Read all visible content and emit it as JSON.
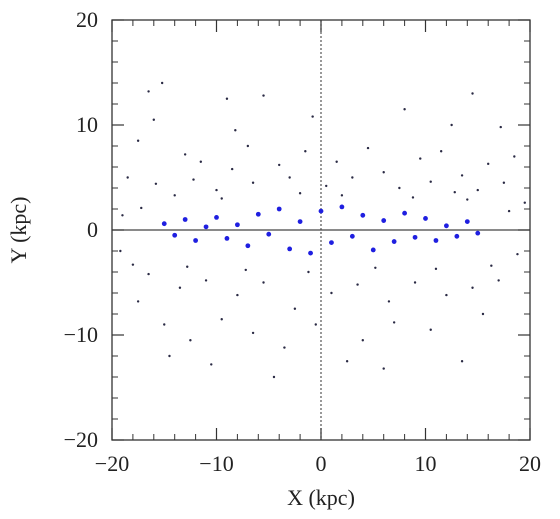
{
  "chart_data": {
    "type": "scatter",
    "title": "",
    "xlabel": "X (kpc)",
    "ylabel": "Y (kpc)",
    "xlim": [
      -20,
      20
    ],
    "ylim": [
      -20,
      20
    ],
    "xticks": [
      -20,
      -10,
      0,
      10,
      20
    ],
    "yticks": [
      -20,
      -10,
      0,
      10,
      20
    ],
    "xtick_labels": [
      "−20",
      "−10",
      "0",
      "10",
      "20"
    ],
    "ytick_labels": [
      "−20",
      "−10",
      "0",
      "10",
      "20"
    ],
    "grid": false,
    "legend": "none",
    "reference_lines": [
      {
        "orientation": "vertical",
        "at": 0,
        "style": "dotted"
      },
      {
        "orientation": "horizontal",
        "at": 0,
        "style": "solid"
      }
    ],
    "series": [
      {
        "role": "halo stars",
        "color": "#2a2a44",
        "points": [
          [
            -16.5,
            13.2
          ],
          [
            -15.2,
            14.0
          ],
          [
            -9.0,
            12.5
          ],
          [
            -5.5,
            12.8
          ],
          [
            14.5,
            13.0
          ],
          [
            8.0,
            11.5
          ],
          [
            -17.5,
            8.5
          ],
          [
            -13.0,
            7.2
          ],
          [
            -11.5,
            6.5
          ],
          [
            -8.5,
            5.8
          ],
          [
            -7.0,
            8.0
          ],
          [
            -4.0,
            6.2
          ],
          [
            -1.5,
            7.5
          ],
          [
            1.5,
            6.5
          ],
          [
            4.5,
            7.8
          ],
          [
            6.0,
            5.5
          ],
          [
            9.5,
            6.8
          ],
          [
            11.5,
            7.5
          ],
          [
            13.5,
            5.2
          ],
          [
            16.0,
            6.3
          ],
          [
            17.5,
            4.5
          ],
          [
            18.5,
            7.0
          ],
          [
            -18.5,
            5.0
          ],
          [
            -15.8,
            4.4
          ],
          [
            -12.2,
            4.8
          ],
          [
            -10.0,
            3.8
          ],
          [
            -6.5,
            4.5
          ],
          [
            -3.0,
            5.0
          ],
          [
            0.5,
            4.2
          ],
          [
            3.0,
            5.0
          ],
          [
            7.5,
            4.0
          ],
          [
            10.5,
            4.6
          ],
          [
            12.8,
            3.6
          ],
          [
            15.0,
            3.8
          ],
          [
            -14.0,
            3.3
          ],
          [
            -9.5,
            3.0
          ],
          [
            -2.0,
            3.5
          ],
          [
            2.0,
            3.3
          ],
          [
            8.8,
            3.1
          ],
          [
            14.0,
            2.9
          ],
          [
            -19.0,
            1.4
          ],
          [
            -17.2,
            2.1
          ],
          [
            18.0,
            1.8
          ],
          [
            19.5,
            2.6
          ],
          [
            -16.5,
            -4.2
          ],
          [
            -13.5,
            -5.5
          ],
          [
            -11.0,
            -4.8
          ],
          [
            -8.0,
            -6.2
          ],
          [
            -5.5,
            -5.0
          ],
          [
            -2.5,
            -7.5
          ],
          [
            1.0,
            -6.0
          ],
          [
            3.5,
            -5.2
          ],
          [
            6.5,
            -6.8
          ],
          [
            9.0,
            -5.0
          ],
          [
            12.0,
            -6.2
          ],
          [
            14.5,
            -5.5
          ],
          [
            17.0,
            -4.8
          ],
          [
            -17.5,
            -6.8
          ],
          [
            -15.0,
            -9.0
          ],
          [
            -12.5,
            -10.5
          ],
          [
            -9.5,
            -8.5
          ],
          [
            -6.5,
            -9.8
          ],
          [
            -3.5,
            -11.2
          ],
          [
            -0.5,
            -9.0
          ],
          [
            4.0,
            -10.5
          ],
          [
            7.0,
            -8.8
          ],
          [
            10.5,
            -9.5
          ],
          [
            13.5,
            -12.5
          ],
          [
            15.5,
            -8.0
          ],
          [
            -14.5,
            -12.0
          ],
          [
            -10.5,
            -12.8
          ],
          [
            2.5,
            -12.5
          ],
          [
            -18.0,
            -3.3
          ],
          [
            -12.8,
            -3.5
          ],
          [
            -7.2,
            -3.8
          ],
          [
            -1.2,
            -4.0
          ],
          [
            5.2,
            -3.6
          ],
          [
            11.0,
            -3.7
          ],
          [
            16.3,
            -3.4
          ],
          [
            18.8,
            -2.3
          ],
          [
            -19.2,
            -2.0
          ],
          [
            -4.5,
            -14.0
          ],
          [
            6.0,
            -13.2
          ],
          [
            -16.0,
            10.5
          ],
          [
            12.5,
            10.0
          ],
          [
            -0.8,
            10.8
          ],
          [
            17.2,
            9.8
          ],
          [
            -8.2,
            9.5
          ]
        ]
      },
      {
        "role": "disk stars",
        "color": "#1f1fe0",
        "points": [
          [
            -15.0,
            0.6
          ],
          [
            -14.0,
            -0.5
          ],
          [
            -13.0,
            1.0
          ],
          [
            -12.0,
            -1.0
          ],
          [
            -11.0,
            0.3
          ],
          [
            -10.0,
            1.2
          ],
          [
            -9.0,
            -0.8
          ],
          [
            -8.0,
            0.5
          ],
          [
            -7.0,
            -1.5
          ],
          [
            -6.0,
            1.5
          ],
          [
            -5.0,
            -0.4
          ],
          [
            -4.0,
            2.0
          ],
          [
            -3.0,
            -1.8
          ],
          [
            -2.0,
            0.8
          ],
          [
            -1.0,
            -2.2
          ],
          [
            0.0,
            1.8
          ],
          [
            1.0,
            -1.2
          ],
          [
            2.0,
            2.2
          ],
          [
            3.0,
            -0.6
          ],
          [
            4.0,
            1.4
          ],
          [
            5.0,
            -1.9
          ],
          [
            6.0,
            0.9
          ],
          [
            7.0,
            -1.1
          ],
          [
            8.0,
            1.6
          ],
          [
            9.0,
            -0.7
          ],
          [
            10.0,
            1.1
          ],
          [
            11.0,
            -1.0
          ],
          [
            12.0,
            0.4
          ],
          [
            13.0,
            -0.6
          ],
          [
            14.0,
            0.8
          ],
          [
            15.0,
            -0.3
          ]
        ]
      }
    ]
  }
}
